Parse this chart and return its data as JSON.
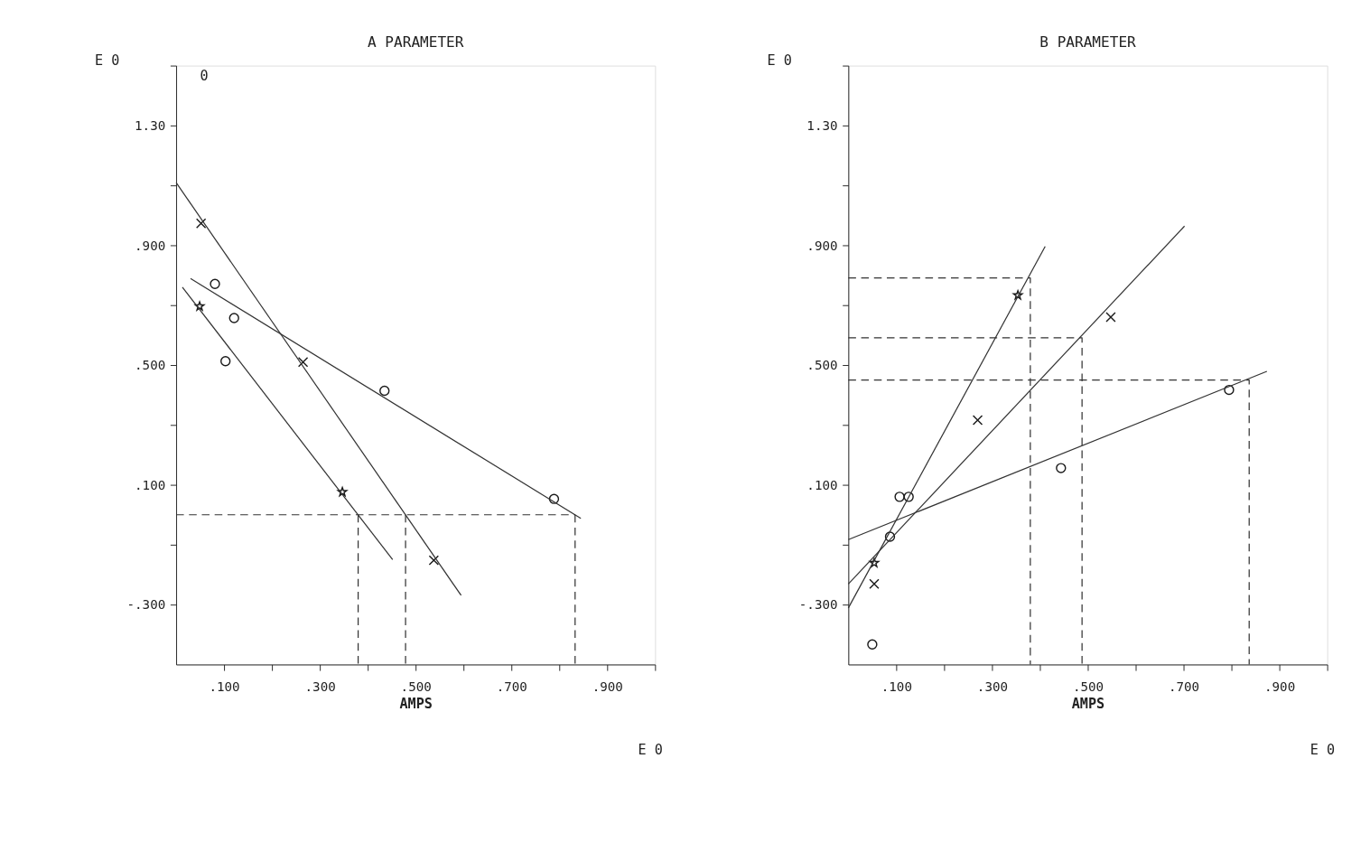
{
  "chart_data": [
    {
      "type": "scatter",
      "title": "A PARAMETER",
      "xlabel": "AMPS",
      "xlim": [
        0,
        1
      ],
      "ylim": [
        -0.5,
        1.5
      ],
      "xticks": [
        {
          "value": 0.1,
          "label": ".100"
        },
        {
          "value": 0.2,
          "label": null
        },
        {
          "value": 0.3,
          "label": ".300"
        },
        {
          "value": 0.4,
          "label": null
        },
        {
          "value": 0.5,
          "label": ".500"
        },
        {
          "value": 0.6,
          "label": null
        },
        {
          "value": 0.7,
          "label": ".700"
        },
        {
          "value": 0.8,
          "label": null
        },
        {
          "value": 0.9,
          "label": ".900"
        },
        {
          "value": 1.0,
          "label": null
        }
      ],
      "yticks": [
        {
          "value": -0.3,
          "label": "-.300"
        },
        {
          "value": -0.1,
          "label": null
        },
        {
          "value": 0.1,
          "label": ".100"
        },
        {
          "value": 0.3,
          "label": null
        },
        {
          "value": 0.5,
          "label": ".500"
        },
        {
          "value": 0.7,
          "label": null
        },
        {
          "value": 0.9,
          "label": ".900"
        },
        {
          "value": 1.1,
          "label": null
        },
        {
          "value": 1.3,
          "label": "1.30"
        },
        {
          "value": 1.5,
          "label": null
        }
      ],
      "grid": false,
      "annotations": [
        "E 0",
        "E 0",
        "0"
      ],
      "series": [
        {
          "marker": "circle",
          "color": "#1a1a1a",
          "x": [
            0.081,
            0.121,
            0.103,
            0.435,
            0.789
          ],
          "values": [
            0.771,
            0.657,
            0.513,
            0.414,
            0.053
          ]
        },
        {
          "marker": "cross",
          "color": "#1a1a1a",
          "x": [
            0.052,
            0.265,
            0.538
          ],
          "values": [
            0.973,
            0.51,
            -0.152
          ]
        },
        {
          "marker": "star",
          "color": "#1a1a1a",
          "x": [
            0.049,
            0.347
          ],
          "values": [
            0.696,
            0.076
          ]
        },
        {
          "type": "line",
          "line_style": "solid",
          "color": "#333333",
          "x": [
            0.0,
            0.595
          ],
          "values": [
            1.109,
            -0.269
          ]
        },
        {
          "type": "line",
          "line_style": "solid",
          "color": "#333333",
          "x": [
            0.03,
            0.845
          ],
          "values": [
            0.789,
            -0.012
          ]
        },
        {
          "type": "line",
          "line_style": "solid",
          "color": "#333333",
          "x": [
            0.013,
            0.452
          ],
          "values": [
            0.76,
            -0.15
          ]
        },
        {
          "type": "line",
          "line_style": "dashed",
          "color": "#333333",
          "x": [
            0.0,
            0.833
          ],
          "values": [
            0.0,
            0.0
          ]
        },
        {
          "type": "line",
          "line_style": "dashed",
          "color": "#333333",
          "x": [
            0.38,
            0.38
          ],
          "values": [
            0.0,
            -0.5
          ]
        },
        {
          "type": "line",
          "line_style": "dashed",
          "color": "#333333",
          "x": [
            0.479,
            0.479
          ],
          "values": [
            0.0,
            -0.5
          ]
        },
        {
          "type": "line",
          "line_style": "dashed",
          "color": "#333333",
          "x": [
            0.833,
            0.833
          ],
          "values": [
            0.0,
            -0.5
          ]
        }
      ]
    },
    {
      "type": "scatter",
      "title": "B PARAMETER",
      "xlabel": "AMPS",
      "xlim": [
        0,
        1
      ],
      "ylim": [
        -0.5,
        1.5
      ],
      "xticks": [
        {
          "value": 0.1,
          "label": ".100"
        },
        {
          "value": 0.2,
          "label": null
        },
        {
          "value": 0.3,
          "label": ".300"
        },
        {
          "value": 0.4,
          "label": null
        },
        {
          "value": 0.5,
          "label": ".500"
        },
        {
          "value": 0.6,
          "label": null
        },
        {
          "value": 0.7,
          "label": ".700"
        },
        {
          "value": 0.8,
          "label": null
        },
        {
          "value": 0.9,
          "label": ".900"
        },
        {
          "value": 1.0,
          "label": null
        }
      ],
      "yticks": [
        {
          "value": -0.3,
          "label": "-.300"
        },
        {
          "value": -0.1,
          "label": null
        },
        {
          "value": 0.1,
          "label": ".100"
        },
        {
          "value": 0.3,
          "label": null
        },
        {
          "value": 0.5,
          "label": ".500"
        },
        {
          "value": 0.7,
          "label": null
        },
        {
          "value": 0.9,
          "label": ".900"
        },
        {
          "value": 1.1,
          "label": null
        },
        {
          "value": 1.3,
          "label": "1.30"
        },
        {
          "value": 1.5,
          "label": null
        }
      ],
      "grid": false,
      "annotations": [
        "E 0",
        "E 0"
      ],
      "series": [
        {
          "marker": "circle",
          "color": "#1a1a1a",
          "x": [
            0.05,
            0.087,
            0.107,
            0.126,
            0.444,
            0.795
          ],
          "values": [
            -0.433,
            -0.073,
            0.06,
            0.06,
            0.156,
            0.417
          ]
        },
        {
          "marker": "cross",
          "color": "#1a1a1a",
          "x": [
            0.054,
            0.27,
            0.548
          ],
          "values": [
            -0.231,
            0.316,
            0.66
          ]
        },
        {
          "marker": "star",
          "color": "#1a1a1a",
          "x": [
            0.054,
            0.354
          ],
          "values": [
            -0.161,
            0.733
          ]
        },
        {
          "type": "line",
          "line_style": "solid",
          "color": "#333333",
          "x": [
            0.0,
            0.411
          ],
          "values": [
            -0.311,
            0.896
          ]
        },
        {
          "type": "line",
          "line_style": "solid",
          "color": "#333333",
          "x": [
            0.0,
            0.702
          ],
          "values": [
            -0.231,
            0.964
          ]
        },
        {
          "type": "line",
          "line_style": "solid",
          "color": "#333333",
          "x": [
            0.0,
            0.874
          ],
          "values": [
            -0.083,
            0.479
          ]
        },
        {
          "type": "line",
          "line_style": "dashed",
          "color": "#333333",
          "x": [
            0.0,
            0.38,
            0.38
          ],
          "values": [
            0.791,
            0.791,
            -0.5
          ]
        },
        {
          "type": "line",
          "line_style": "dashed",
          "color": "#333333",
          "x": [
            0.0,
            0.488,
            0.488
          ],
          "values": [
            0.591,
            0.591,
            -0.5
          ]
        },
        {
          "type": "line",
          "line_style": "dashed",
          "color": "#333333",
          "x": [
            0.0,
            0.837,
            0.837
          ],
          "values": [
            0.45,
            0.45,
            -0.5
          ]
        }
      ]
    }
  ]
}
